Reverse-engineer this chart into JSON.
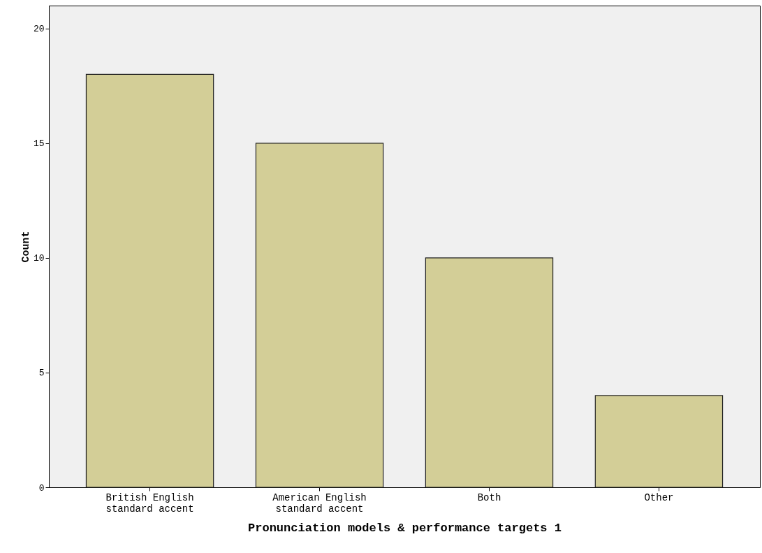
{
  "chart_data": {
    "type": "bar",
    "xlabel": "Pronunciation models & performance targets 1",
    "ylabel": "Count",
    "categories": [
      "British English standard accent",
      "American English standard accent",
      "Both",
      "Other"
    ],
    "values": [
      18,
      15,
      10,
      4
    ],
    "color": "#d3ce97",
    "ylim": [
      0,
      21
    ],
    "yticks": [
      0,
      5,
      10,
      15,
      20
    ],
    "grid": false
  }
}
